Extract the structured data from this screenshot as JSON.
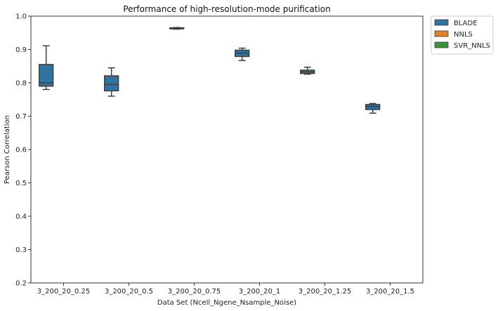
{
  "chart_data": {
    "type": "box",
    "title": "Performance of high-resolution-mode purification",
    "xlabel": "Data Set (Ncell_Ngene_Nsample_Noise)",
    "ylabel": "Pearson Correlation",
    "ylim": [
      0.2,
      1.0
    ],
    "yticks": [
      0.2,
      0.3,
      0.4,
      0.5,
      0.6,
      0.7,
      0.8,
      0.9,
      1.0
    ],
    "ytick_labels": [
      "0.2",
      "0.3",
      "0.4",
      "0.5",
      "0.6",
      "0.7",
      "0.8",
      "0.9",
      "1.0"
    ],
    "grid": false,
    "legend_position": "outside-top-right",
    "categories": [
      "3_200_20_0.25",
      "3_200_20_0.5",
      "3_200_20_0.75",
      "3_200_20_1",
      "3_200_20_1.25",
      "3_200_20_1.5"
    ],
    "series": [
      {
        "name": "BLADE",
        "color": "#3274a1",
        "boxes": [
          {
            "whisker_low": 0.78,
            "q1": 0.79,
            "median": 0.8,
            "q3": 0.855,
            "whisker_high": 0.911
          },
          {
            "whisker_low": 0.76,
            "q1": 0.776,
            "median": 0.795,
            "q3": 0.821,
            "whisker_high": 0.845
          },
          {
            "whisker_low": 0.961,
            "q1": 0.962,
            "median": 0.963,
            "q3": 0.965,
            "whisker_high": 0.966
          },
          {
            "whisker_low": 0.867,
            "q1": 0.879,
            "median": 0.889,
            "q3": 0.898,
            "whisker_high": 0.904
          },
          {
            "whisker_low": 0.826,
            "q1": 0.828,
            "median": 0.833,
            "q3": 0.838,
            "whisker_high": 0.847
          },
          {
            "whisker_low": 0.709,
            "q1": 0.72,
            "median": 0.729,
            "q3": 0.735,
            "whisker_high": 0.738
          }
        ]
      },
      {
        "name": "NNLS",
        "color": "#e1812c",
        "boxes": []
      },
      {
        "name": "SVR_NNLS",
        "color": "#3a923a",
        "boxes": []
      }
    ]
  }
}
